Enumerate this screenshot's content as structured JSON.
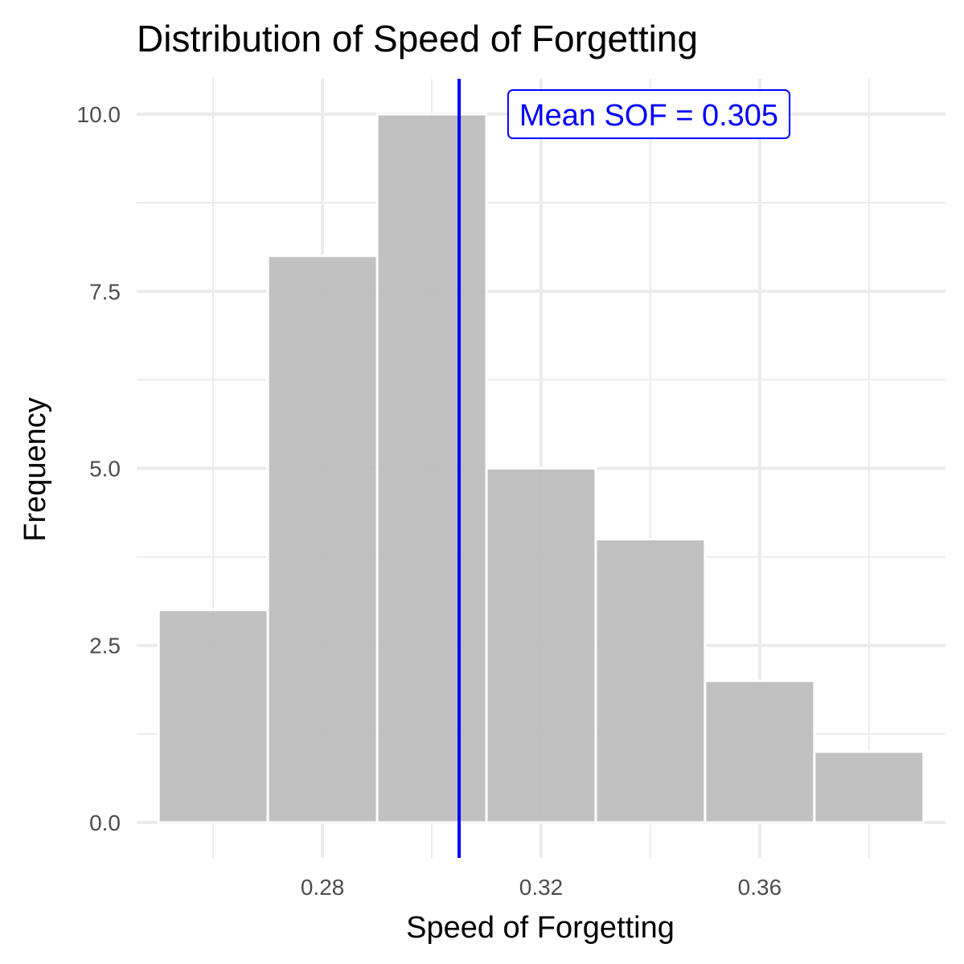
{
  "chart_data": {
    "type": "bar",
    "title": "Distribution of Speed of Forgetting",
    "xlabel": "Speed of Forgetting",
    "ylabel": "Frequency",
    "bins": [
      {
        "x0": 0.25,
        "x1": 0.27,
        "count": 3
      },
      {
        "x0": 0.27,
        "x1": 0.29,
        "count": 8
      },
      {
        "x0": 0.29,
        "x1": 0.31,
        "count": 10
      },
      {
        "x0": 0.31,
        "x1": 0.33,
        "count": 5
      },
      {
        "x0": 0.33,
        "x1": 0.35,
        "count": 4
      },
      {
        "x0": 0.35,
        "x1": 0.37,
        "count": 2
      },
      {
        "x0": 0.37,
        "x1": 0.39,
        "count": 1
      }
    ],
    "xlim": [
      0.246,
      0.394
    ],
    "ylim": [
      -0.5,
      10.5
    ],
    "x_ticks": [
      0.28,
      0.32,
      0.36
    ],
    "x_tick_labels": [
      "0.28",
      "0.32",
      "0.36"
    ],
    "x_minor_ticks": [
      0.26,
      0.3,
      0.34,
      0.38
    ],
    "y_ticks": [
      0,
      2.5,
      5,
      7.5,
      10
    ],
    "y_tick_labels": [
      "0.0",
      "2.5",
      "5.0",
      "7.5",
      "10.0"
    ],
    "y_minor_ticks": [
      1.25,
      3.75,
      6.25,
      8.75
    ],
    "grid": true,
    "mean_line": {
      "value": 0.305,
      "label": "Mean SOF = 0.305"
    },
    "colors": {
      "bar_fill": "#bebebe",
      "bar_outline": "#ffffff",
      "grid": "#ebebeb",
      "mean_line": "#0000ff"
    }
  }
}
